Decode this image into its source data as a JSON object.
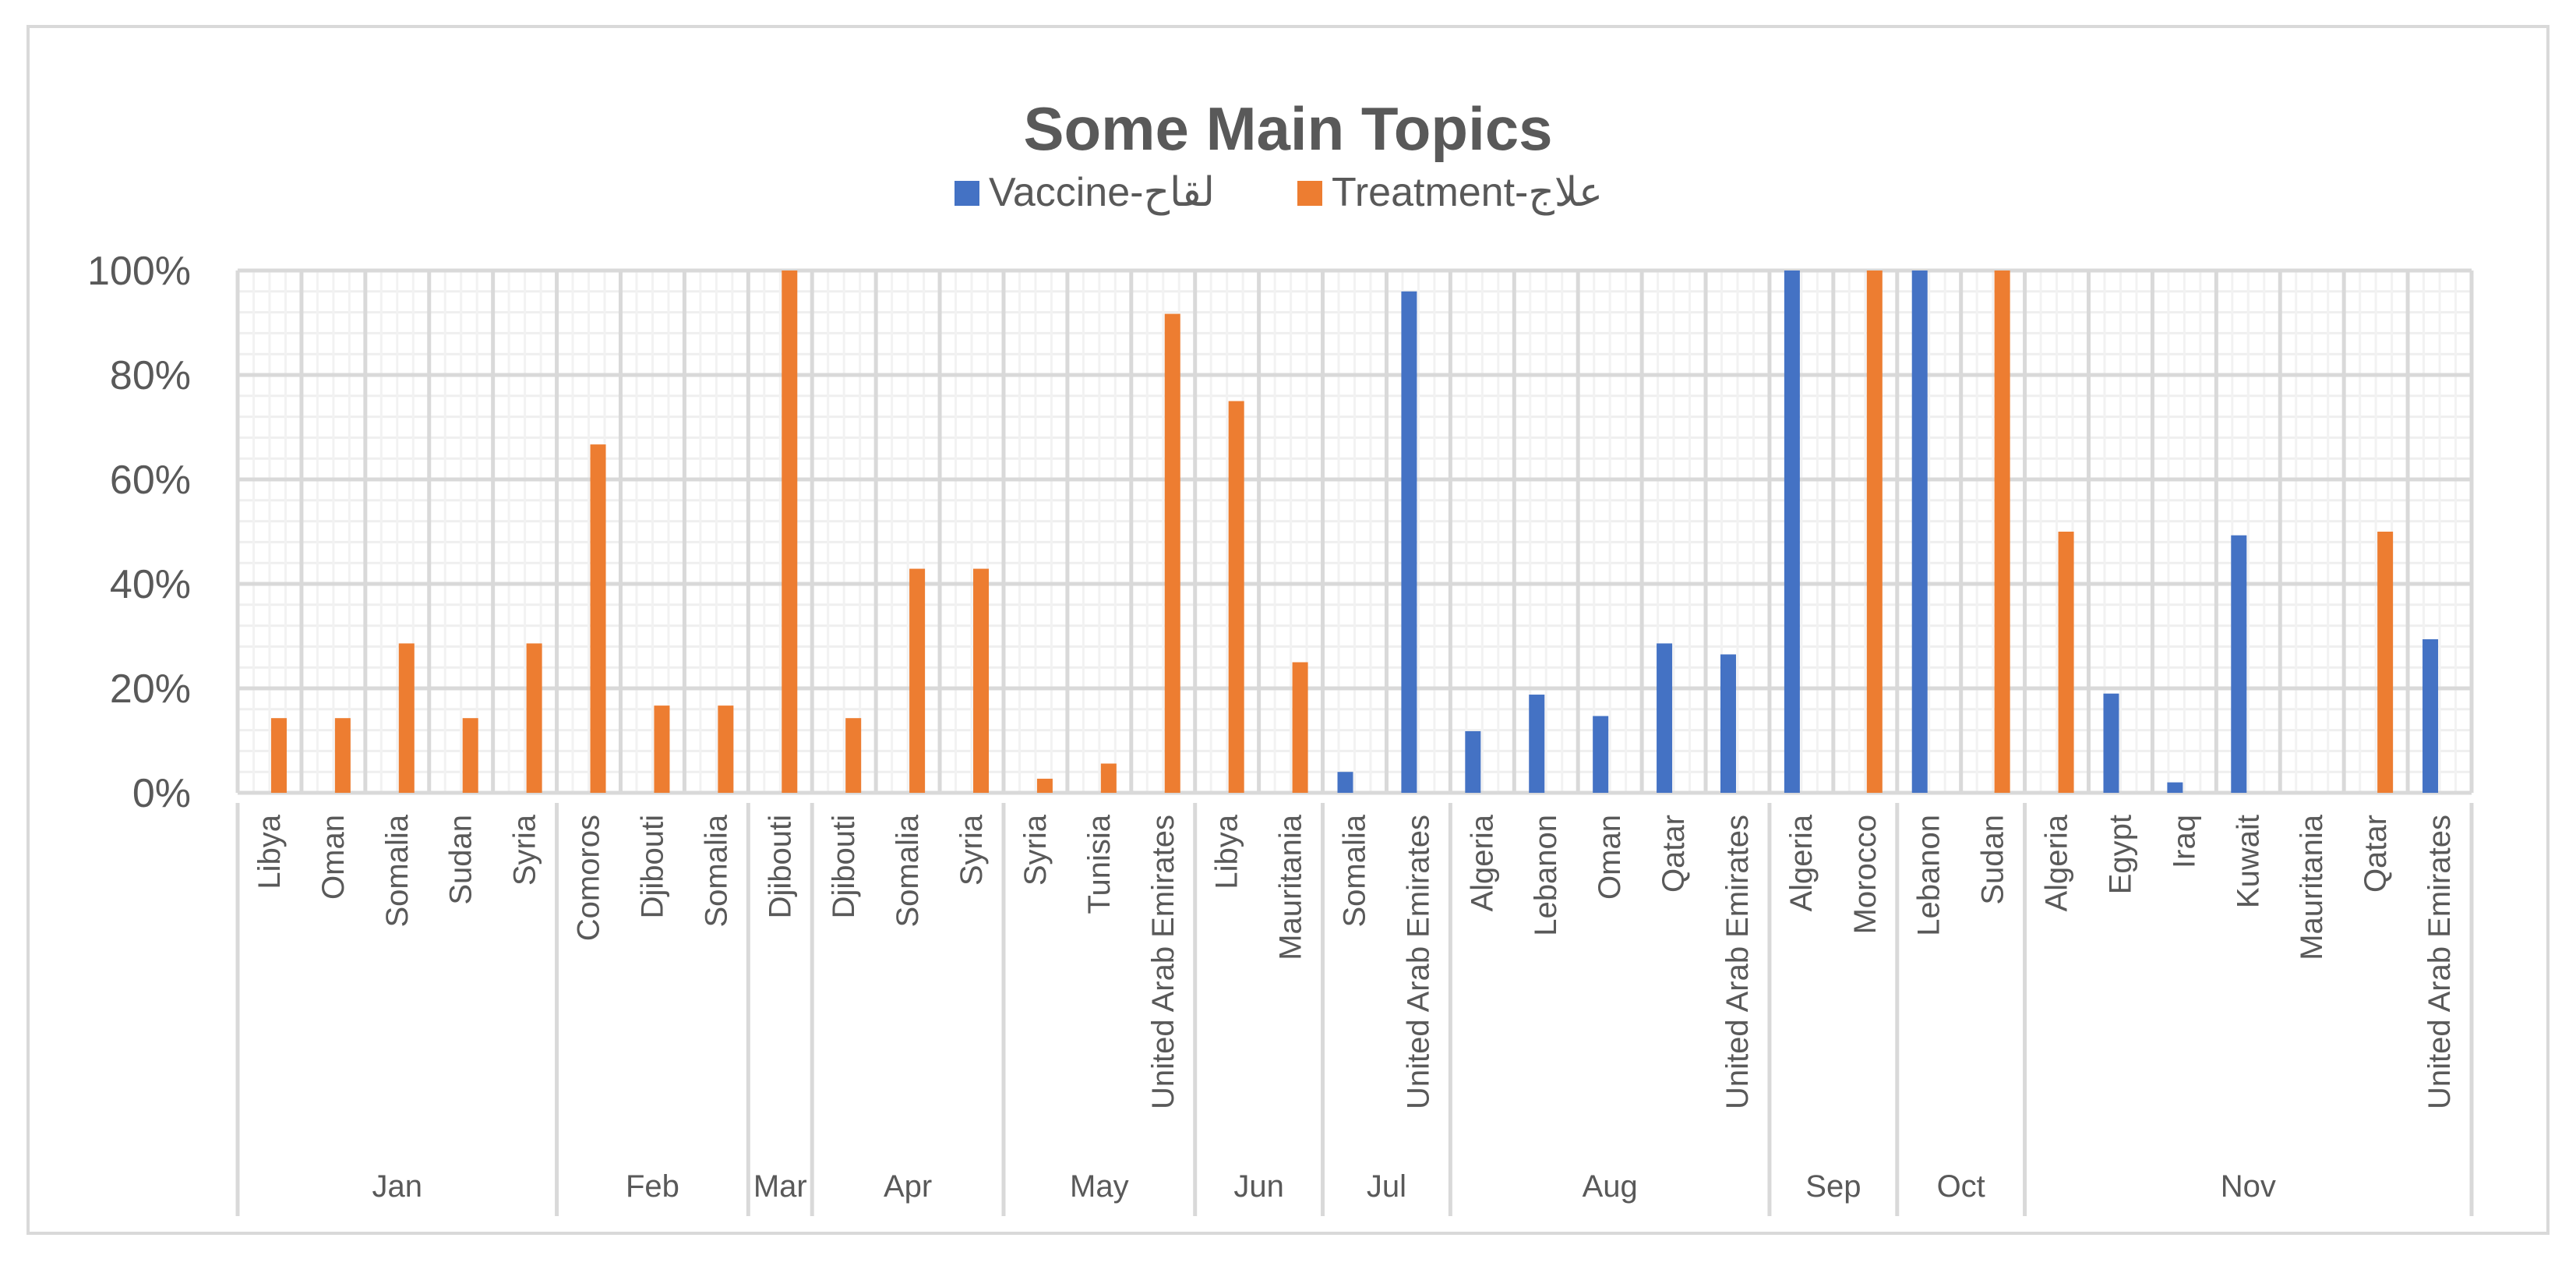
{
  "chart_data": {
    "type": "bar",
    "title": "Some Main Topics",
    "xlabel": "",
    "ylabel": "",
    "ylim": [
      0,
      1
    ],
    "y_ticks": [
      "0%",
      "20%",
      "40%",
      "60%",
      "80%",
      "100%"
    ],
    "legend_position": "top",
    "grid": true,
    "categories": [
      {
        "month": "Jan",
        "country": "Libya",
        "vaccine": 0,
        "treatment": 0.143
      },
      {
        "month": "Jan",
        "country": "Oman",
        "vaccine": 0,
        "treatment": 0.143
      },
      {
        "month": "Jan",
        "country": "Somalia",
        "vaccine": 0,
        "treatment": 0.286
      },
      {
        "month": "Jan",
        "country": "Sudan",
        "vaccine": 0,
        "treatment": 0.143
      },
      {
        "month": "Jan",
        "country": "Syria",
        "vaccine": 0,
        "treatment": 0.286
      },
      {
        "month": "Feb",
        "country": "Comoros",
        "vaccine": 0,
        "treatment": 0.667
      },
      {
        "month": "Feb",
        "country": "Djibouti",
        "vaccine": 0,
        "treatment": 0.167
      },
      {
        "month": "Feb",
        "country": "Somalia",
        "vaccine": 0,
        "treatment": 0.167
      },
      {
        "month": "Mar",
        "country": "Djibouti",
        "vaccine": 0,
        "treatment": 1.0
      },
      {
        "month": "Apr",
        "country": "Djibouti",
        "vaccine": 0,
        "treatment": 0.143
      },
      {
        "month": "Apr",
        "country": "Somalia",
        "vaccine": 0,
        "treatment": 0.429
      },
      {
        "month": "Apr",
        "country": "Syria",
        "vaccine": 0,
        "treatment": 0.429
      },
      {
        "month": "May",
        "country": "Syria",
        "vaccine": 0,
        "treatment": 0.027
      },
      {
        "month": "May",
        "country": "Tunisia",
        "vaccine": 0,
        "treatment": 0.056
      },
      {
        "month": "May",
        "country": "United Arab Emirates",
        "vaccine": 0,
        "treatment": 0.917
      },
      {
        "month": "Jun",
        "country": "Libya",
        "vaccine": 0,
        "treatment": 0.75
      },
      {
        "month": "Jun",
        "country": "Mauritania",
        "vaccine": 0,
        "treatment": 0.25
      },
      {
        "month": "Jul",
        "country": "Somalia",
        "vaccine": 0.04,
        "treatment": 0
      },
      {
        "month": "Jul",
        "country": "United Arab Emirates",
        "vaccine": 0.96,
        "treatment": 0
      },
      {
        "month": "Aug",
        "country": "Algeria",
        "vaccine": 0.118,
        "treatment": 0
      },
      {
        "month": "Aug",
        "country": "Lebanon",
        "vaccine": 0.188,
        "treatment": 0
      },
      {
        "month": "Aug",
        "country": "Oman",
        "vaccine": 0.147,
        "treatment": 0
      },
      {
        "month": "Aug",
        "country": "Qatar",
        "vaccine": 0.286,
        "treatment": 0
      },
      {
        "month": "Aug",
        "country": "United Arab Emirates",
        "vaccine": 0.265,
        "treatment": 0
      },
      {
        "month": "Sep",
        "country": "Algeria",
        "vaccine": 1.0,
        "treatment": 0
      },
      {
        "month": "Sep",
        "country": "Morocco",
        "vaccine": 0,
        "treatment": 1.0
      },
      {
        "month": "Oct",
        "country": "Lebanon",
        "vaccine": 1.0,
        "treatment": 0
      },
      {
        "month": "Oct",
        "country": "Sudan",
        "vaccine": 0,
        "treatment": 1.0
      },
      {
        "month": "Nov",
        "country": "Algeria",
        "vaccine": 0,
        "treatment": 0.5
      },
      {
        "month": "Nov",
        "country": "Egypt",
        "vaccine": 0.19,
        "treatment": 0
      },
      {
        "month": "Nov",
        "country": "Iraq",
        "vaccine": 0.02,
        "treatment": 0
      },
      {
        "month": "Nov",
        "country": "Kuwait",
        "vaccine": 0.493,
        "treatment": 0
      },
      {
        "month": "Nov",
        "country": "Mauritania",
        "vaccine": 0,
        "treatment": 0
      },
      {
        "month": "Nov",
        "country": "Qatar",
        "vaccine": 0,
        "treatment": 0.5
      },
      {
        "month": "Nov",
        "country": "United Arab Emirates",
        "vaccine": 0.294,
        "treatment": 0
      }
    ],
    "series": [
      {
        "key": "vaccine",
        "name": "Vaccine-لقاح",
        "color": "#4472c4"
      },
      {
        "key": "treatment",
        "name": "Treatment-علاج",
        "color": "#ed7d31"
      }
    ]
  }
}
